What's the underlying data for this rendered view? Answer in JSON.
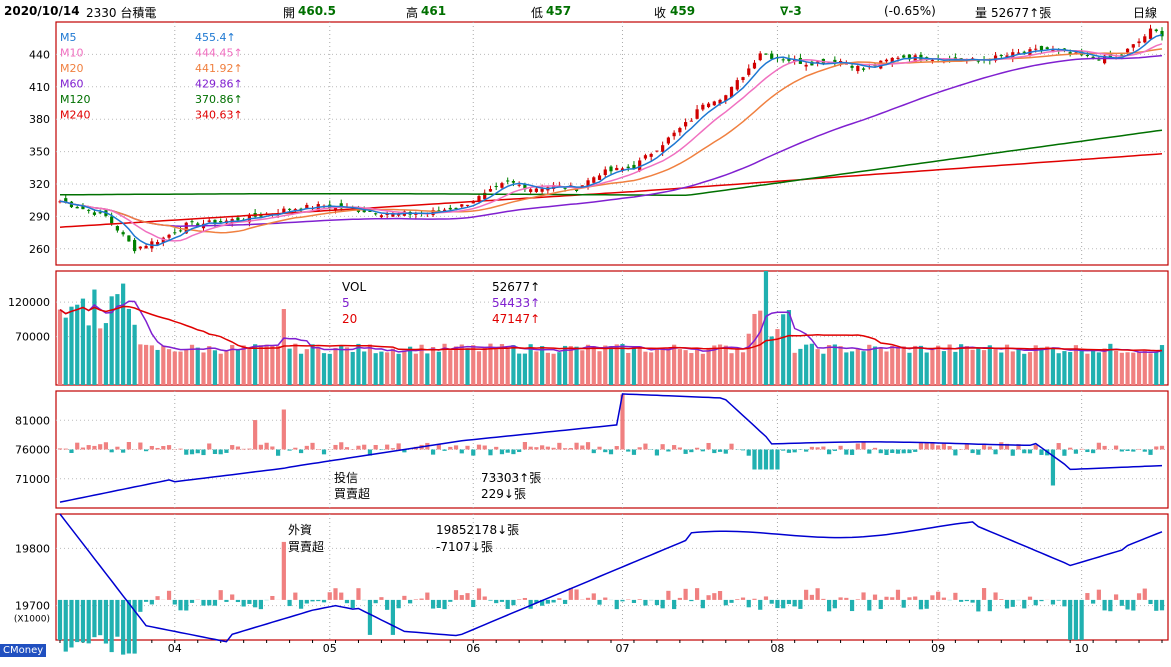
{
  "header": {
    "date": "2020/10/14",
    "stock": "2330 台積電",
    "open_label": "開",
    "open": "460.5",
    "high_label": "高",
    "high": "461",
    "low_label": "低",
    "low": "457",
    "close_label": "收",
    "close": "459",
    "change": "∇-3",
    "change_pct": "(-0.65%)",
    "volume_label": "量",
    "volume": "52677↑張",
    "period": "日線"
  },
  "brand": "CMoney",
  "colors": {
    "up": "#f08080",
    "down": "#20b0b0",
    "ma5": "#1e78d2",
    "ma10": "#f070c0",
    "ma20": "#f08040",
    "ma60": "#8020d0",
    "ma120": "#007000",
    "ma240": "#e00000",
    "vol5": "#8020d0",
    "vol20": "#e00000",
    "line": "#0000d0",
    "frame": "#c00000"
  },
  "chart_data": [
    {
      "type": "line",
      "panel": "price",
      "ylim": [
        245,
        470
      ],
      "y_ticks": [
        "260",
        "290",
        "320",
        "350",
        "380",
        "410",
        "440"
      ],
      "x_ticks": [
        "04",
        "05",
        "06",
        "07",
        "08",
        "09",
        "10"
      ],
      "series": [
        {
          "name": "M5",
          "value": "455.4",
          "arrow": "↑",
          "key": "ma5"
        },
        {
          "name": "M10",
          "value": "444.45",
          "arrow": "↑",
          "key": "ma10"
        },
        {
          "name": "M20",
          "value": "441.92",
          "arrow": "↑",
          "key": "ma20"
        },
        {
          "name": "M60",
          "value": "429.86",
          "arrow": "↑",
          "key": "ma60"
        },
        {
          "name": "M120",
          "value": "370.86",
          "arrow": "↑",
          "key": "ma120"
        },
        {
          "name": "M240",
          "value": "340.63",
          "arrow": "↑",
          "key": "ma240"
        }
      ],
      "ohlc_close_points": [
        [
          0,
          304
        ],
        [
          8,
          290
        ],
        [
          13,
          260
        ],
        [
          18,
          270
        ],
        [
          22,
          282
        ],
        [
          28,
          285
        ],
        [
          34,
          290
        ],
        [
          40,
          297
        ],
        [
          46,
          300
        ],
        [
          52,
          296
        ],
        [
          58,
          292
        ],
        [
          64,
          293
        ],
        [
          70,
          300
        ],
        [
          74,
          310
        ],
        [
          78,
          322
        ],
        [
          82,
          316
        ],
        [
          86,
          318
        ],
        [
          90,
          316
        ],
        [
          94,
          330
        ],
        [
          100,
          336
        ],
        [
          106,
          362
        ],
        [
          110,
          380
        ],
        [
          112,
          395
        ],
        [
          116,
          402
        ],
        [
          120,
          427
        ],
        [
          122,
          442
        ],
        [
          124,
          438
        ],
        [
          130,
          432
        ],
        [
          136,
          434
        ],
        [
          140,
          426
        ],
        [
          146,
          438
        ],
        [
          154,
          436
        ],
        [
          160,
          434
        ],
        [
          166,
          440
        ],
        [
          172,
          445
        ],
        [
          176,
          440
        ],
        [
          180,
          437
        ],
        [
          184,
          436
        ],
        [
          188,
          452
        ],
        [
          190,
          462
        ],
        [
          192,
          459
        ]
      ]
    },
    {
      "type": "bar",
      "panel": "volume",
      "title": "VOL",
      "ylim": [
        0,
        165000
      ],
      "y_ticks": [
        "70000",
        "120000"
      ],
      "series": [
        {
          "name": "VOL",
          "value": "52677",
          "arrow": "↑",
          "key": "up"
        },
        {
          "name": "5",
          "value": "54433",
          "arrow": "↑",
          "key": "vol5"
        },
        {
          "name": "20",
          "value": "47147",
          "arrow": "↑",
          "key": "vol20"
        }
      ]
    },
    {
      "type": "bar",
      "panel": "investment_trust",
      "title": "投信",
      "subtitle": "買賣超",
      "ylim": [
        66000,
        86000
      ],
      "y_ticks": [
        "71000",
        "76000",
        "81000"
      ],
      "series": [
        {
          "name": "投信",
          "value": "73303",
          "arrow": "↑",
          "unit": "張"
        },
        {
          "name": "買賣超",
          "value": "229",
          "arrow": "↓",
          "unit": "張"
        }
      ]
    },
    {
      "type": "bar",
      "panel": "foreign",
      "title": "外資",
      "subtitle": "買賣超",
      "scale_note": "(X1000)",
      "ylim": [
        19640,
        19860
      ],
      "y_ticks": [
        "19700",
        "19800"
      ],
      "series": [
        {
          "name": "外資",
          "value": "19852178",
          "arrow": "↓",
          "unit": "張"
        },
        {
          "name": "買賣超",
          "value": "-7107",
          "arrow": "↓",
          "unit": "張"
        }
      ]
    }
  ]
}
